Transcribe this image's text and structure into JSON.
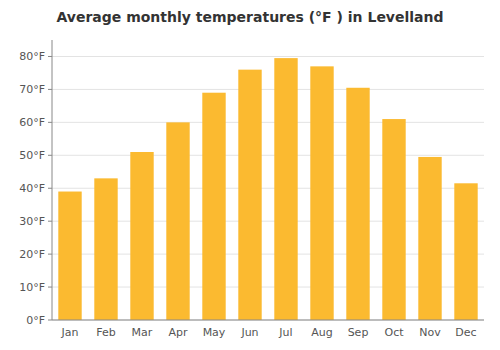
{
  "chart_data": {
    "type": "bar",
    "title": "Average monthly temperatures (°F ) in Levelland",
    "categories": [
      "Jan",
      "Feb",
      "Mar",
      "Apr",
      "May",
      "Jun",
      "Jul",
      "Aug",
      "Sep",
      "Oct",
      "Nov",
      "Dec"
    ],
    "values": [
      39,
      43,
      51,
      60,
      69,
      76,
      79.5,
      77,
      70.5,
      61,
      49.5,
      41.5
    ],
    "color": "#FBBA30",
    "ylim": [
      0,
      85
    ],
    "yticks": [
      {
        "value": 0,
        "label": "0°F"
      },
      {
        "value": 10,
        "label": "10°F"
      },
      {
        "value": 20,
        "label": "20°F"
      },
      {
        "value": 30,
        "label": "30°F"
      },
      {
        "value": 40,
        "label": "40°F"
      },
      {
        "value": 50,
        "label": "50°F"
      },
      {
        "value": 60,
        "label": "60°F"
      },
      {
        "value": 70,
        "label": "70°F"
      },
      {
        "value": 80,
        "label": "80°F"
      }
    ],
    "grid": true
  }
}
